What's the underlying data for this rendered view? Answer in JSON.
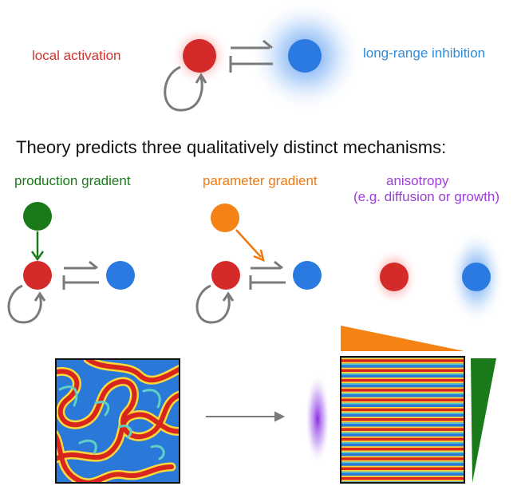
{
  "top": {
    "local_activation": "local activation",
    "long_range_inhibition": "long-range inhibition"
  },
  "headline": "Theory predicts three qualitatively distinct mechanisms:",
  "mechanisms": [
    {
      "title": "production gradient",
      "color": "#1a7a1a"
    },
    {
      "title": "parameter gradient",
      "color": "#f07810"
    },
    {
      "title": "anisotropy",
      "subtitle": "(e.g. diffusion or growth)",
      "color": "#9b3fd6"
    }
  ],
  "colors": {
    "activator": "#d42a2a",
    "inhibitor": "#2a7ae2",
    "arrow": "#7a7a7a",
    "production_source": "#1a7a1a",
    "parameter_source": "#f58214",
    "label_activation": "#d43030",
    "label_inhibition": "#2f8ad8"
  },
  "patterns": {
    "left": "labyrinthine stripes",
    "right": "horizontal stripes"
  }
}
